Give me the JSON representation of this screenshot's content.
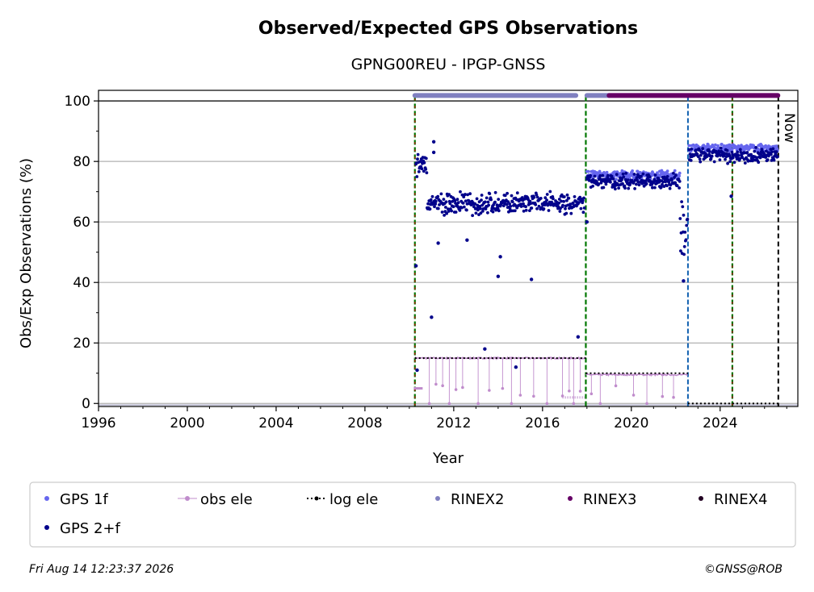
{
  "chart_data": {
    "type": "scatter",
    "title": "Observed/Expected GPS Observations",
    "subtitle": "GPNG00REU - IPGP-GNSS",
    "xlabel": "Year",
    "ylabel": "Obs/Exp Observations (%)",
    "xlim": [
      1996,
      2027.5
    ],
    "ylim": [
      -1,
      103.5
    ],
    "xticks": [
      1996,
      2000,
      2004,
      2008,
      2012,
      2016,
      2020,
      2024
    ],
    "yticks": [
      0,
      20,
      40,
      60,
      80,
      100
    ],
    "grid": "horizontal",
    "legend_position": "bottom",
    "now_label": "Now",
    "now_year": 2026.62,
    "colors": {
      "gps1f": "#6666ee",
      "gps2f": "#00008b",
      "obs_ele": "#c08ccc",
      "log_ele": "#000000",
      "rinex2": "#8080c0",
      "rinex3": "#660066",
      "rinex4": "#220022",
      "event_green": "#007700",
      "event_red": "#cc0000",
      "event_blue": "#1060b0"
    },
    "event_lines": [
      {
        "year": 2010.25,
        "style": "green-red"
      },
      {
        "year": 2017.95,
        "style": "green"
      },
      {
        "year": 2022.55,
        "style": "blue"
      },
      {
        "year": 2024.55,
        "style": "green-red"
      }
    ],
    "rinex_bars": [
      {
        "series": "RINEX2",
        "from": 2010.25,
        "to": 2017.5
      },
      {
        "series": "RINEX2",
        "from": 2018.0,
        "to": 2019.0
      },
      {
        "series": "RINEX3",
        "from": 2019.0,
        "to": 2026.6
      }
    ],
    "log_ele": [
      {
        "from": 2010.25,
        "to": 2017.95,
        "value": 15
      },
      {
        "from": 2017.95,
        "to": 2022.55,
        "value": 10
      },
      {
        "from": 2022.55,
        "to": 2026.62,
        "value": 0
      }
    ],
    "series": [
      {
        "name": "GPS 1f",
        "segments": [
          {
            "from": 2018.0,
            "to": 2022.2,
            "level": 75.5,
            "spread": 1.2
          },
          {
            "from": 2022.6,
            "to": 2026.6,
            "level": 84.5,
            "spread": 1.0
          }
        ]
      },
      {
        "name": "GPS 2+f",
        "segments": [
          {
            "from": 2010.3,
            "to": 2010.8,
            "level": 78,
            "spread": 4
          },
          {
            "from": 2010.8,
            "to": 2017.9,
            "level": 66,
            "spread": 3
          },
          {
            "from": 2018.0,
            "to": 2022.2,
            "level": 73.5,
            "spread": 2
          },
          {
            "from": 2022.2,
            "to": 2022.55,
            "level": 58,
            "spread": 9
          },
          {
            "from": 2022.6,
            "to": 2026.6,
            "level": 82,
            "spread": 2
          }
        ],
        "outliers": [
          [
            2010.3,
            45.5
          ],
          [
            2010.35,
            11
          ],
          [
            2011.0,
            28.5
          ],
          [
            2011.1,
            86.5
          ],
          [
            2011.1,
            83
          ],
          [
            2011.3,
            53
          ],
          [
            2012.6,
            54
          ],
          [
            2013.4,
            18
          ],
          [
            2014.0,
            42
          ],
          [
            2014.1,
            48.5
          ],
          [
            2014.8,
            12
          ],
          [
            2015.5,
            41
          ],
          [
            2017.6,
            22
          ],
          [
            2018.0,
            60
          ],
          [
            2024.5,
            68.5
          ],
          [
            2022.35,
            40.5
          ]
        ]
      },
      {
        "name": "obs ele",
        "segments": [
          {
            "from": 2010.25,
            "to": 2017.95,
            "level": 15,
            "spread": 0.5
          },
          {
            "from": 2017.95,
            "to": 2022.55,
            "level": 9.5,
            "spread": 0.5
          }
        ],
        "dips": [
          2010.9,
          2011.2,
          2011.5,
          2011.8,
          2012.1,
          2012.4,
          2013.1,
          2013.6,
          2014.2,
          2014.6,
          2015.0,
          2015.6,
          2016.2,
          2016.9,
          2017.2,
          2017.4,
          2017.7,
          2018.2,
          2018.6,
          2019.3,
          2020.1,
          2020.7,
          2021.4,
          2021.9
        ]
      }
    ],
    "legend": [
      {
        "label": "GPS 1f",
        "marker": "dot",
        "color": "#6666ee"
      },
      {
        "label": "obs ele",
        "marker": "line-dot",
        "color": "#c08ccc"
      },
      {
        "label": "log ele",
        "marker": "dotted-line",
        "color": "#000000"
      },
      {
        "label": "RINEX2",
        "marker": "dot",
        "color": "#8080c0"
      },
      {
        "label": "RINEX3",
        "marker": "dot",
        "color": "#660066"
      },
      {
        "label": "RINEX4",
        "marker": "dot",
        "color": "#220022"
      },
      {
        "label": "GPS 2+f",
        "marker": "dot",
        "color": "#00008b"
      }
    ]
  },
  "footer": {
    "timestamp": "Fri Aug 14 12:23:37 2026",
    "credit": "©GNSS@ROB"
  }
}
